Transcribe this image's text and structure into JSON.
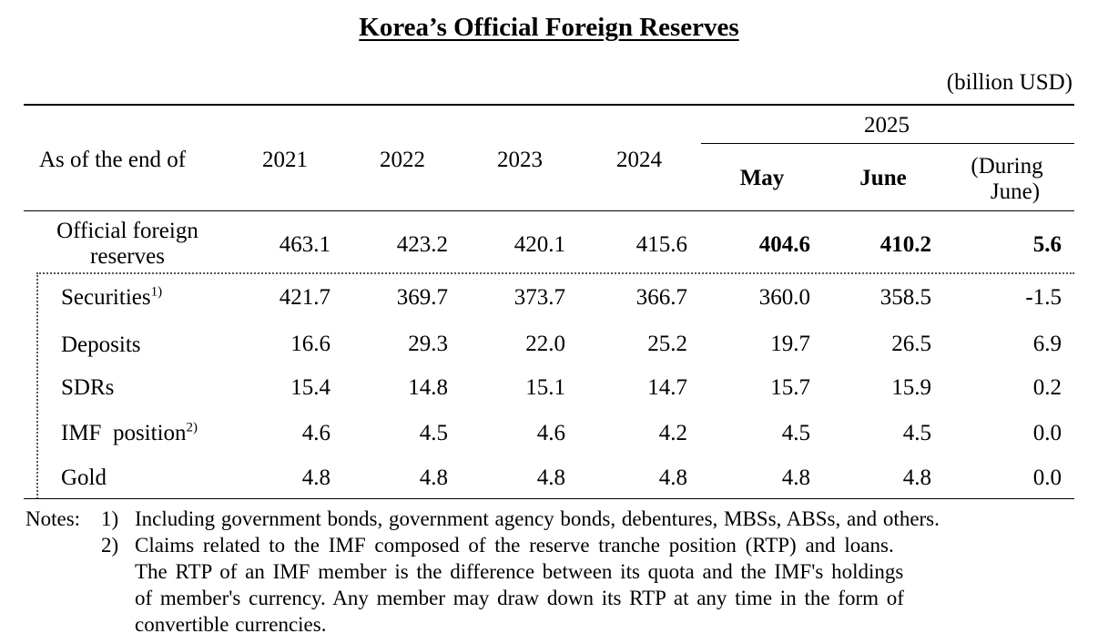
{
  "title": "Korea’s Official Foreign Reserves",
  "unit": "(billion USD)",
  "header": {
    "row_label": "As of the end of",
    "years": [
      "2021",
      "2022",
      "2023",
      "2024"
    ],
    "group": "2025",
    "months": [
      "May",
      "June"
    ],
    "change_label_line1": "(During",
    "change_label_line2": "June)"
  },
  "total": {
    "label_line1": "Official foreign",
    "label_line2": "reserves",
    "values": [
      "463.1",
      "423.2",
      "420.1",
      "415.6",
      "404.6",
      "410.2",
      "5.6"
    ]
  },
  "rows": [
    {
      "label": "Securities",
      "note": "1)",
      "values": [
        "421.7",
        "369.7",
        "373.7",
        "366.7",
        "360.0",
        "358.5",
        "-1.5"
      ]
    },
    {
      "label": "Deposits",
      "note": "",
      "values": [
        "16.6",
        "29.3",
        "22.0",
        "25.2",
        "19.7",
        "26.5",
        "6.9"
      ]
    },
    {
      "label": "SDRs",
      "note": "",
      "values": [
        "15.4",
        "14.8",
        "15.1",
        "14.7",
        "15.7",
        "15.9",
        "0.2"
      ]
    },
    {
      "label": "IMF  position",
      "note": "2)",
      "values": [
        "4.6",
        "4.5",
        "4.6",
        "4.2",
        "4.5",
        "4.5",
        "0.0"
      ]
    },
    {
      "label": "Gold",
      "note": "",
      "values": [
        "4.8",
        "4.8",
        "4.8",
        "4.8",
        "4.8",
        "4.8",
        "0.0"
      ]
    }
  ],
  "notes": {
    "prefix": "Notes:",
    "n1_marker": "1)",
    "n1_text": "Including government bonds, government agency bonds, debentures, MBSs, ABSs, and others.",
    "n2_marker": "2)",
    "n2_line1": "Claims related to the IMF composed of the reserve tranche position (RTP) and loans.",
    "n2_line2": "The RTP of an IMF member is the difference between its quota and the IMF's holdings",
    "n2_line3": "of member's currency. Any member may draw down its RTP at any time in the form of",
    "n2_line4": "convertible currencies."
  }
}
